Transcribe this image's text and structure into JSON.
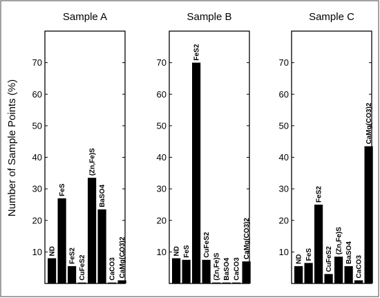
{
  "chart_data": {
    "type": "bar",
    "ylabel": "Number of Sample Points (%)",
    "ylim": [
      0,
      80
    ],
    "yticks": [
      10,
      20,
      30,
      40,
      50,
      60,
      70
    ],
    "panels": [
      {
        "title": "Sample A",
        "categories": [
          "ND",
          "FeS",
          "FeS2",
          "CuFeS2",
          "(Zn,Fe)S",
          "BaSO4",
          "CaCO3",
          "CaMg(CO3)2"
        ],
        "values": [
          8,
          27,
          5.5,
          0.3,
          33.5,
          23.5,
          0.3,
          1
        ]
      },
      {
        "title": "Sample B",
        "categories": [
          "ND",
          "FeS",
          "FeS2",
          "CuFeS2",
          "(Zn,Fe)S",
          "BaSO4",
          "CaCO3",
          "CaMg(CO3)2"
        ],
        "values": [
          8,
          7.5,
          70,
          7.5,
          0.3,
          0.3,
          0.3,
          7
        ]
      },
      {
        "title": "Sample C",
        "categories": [
          "ND",
          "FeS",
          "FeS2",
          "CuFeS2",
          "(Zn,Fe)S",
          "BaSO4",
          "CaCO3",
          "CaMg(CO3)2"
        ],
        "values": [
          5.5,
          6.5,
          25,
          3,
          8.5,
          5.5,
          1,
          43.5
        ]
      }
    ]
  }
}
